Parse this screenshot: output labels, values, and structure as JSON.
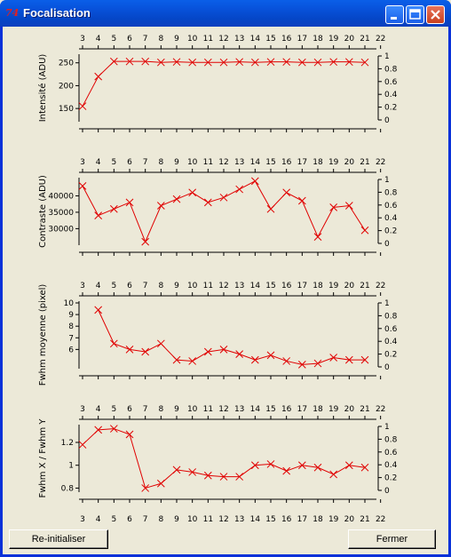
{
  "window": {
    "title": "Focalisation",
    "icon_glyph": "74",
    "controls": [
      "minimize-icon",
      "maximize-icon",
      "close-icon"
    ]
  },
  "buttons": {
    "reset_label": "Re-initialiser",
    "close_label": "Fermer"
  },
  "colors": {
    "titlebar": "#0a5fe8",
    "background": "#ece9d8",
    "series": "#e00000",
    "plot_bg": "#ece9d8"
  },
  "chart_data": [
    {
      "type": "line",
      "ylabel": "Intensité (ADU)",
      "x_ticks": [
        3,
        4,
        5,
        6,
        7,
        8,
        9,
        10,
        11,
        12,
        13,
        14,
        15,
        16,
        17,
        18,
        19,
        20,
        21,
        22
      ],
      "x": [
        3,
        4,
        5,
        6,
        7,
        8,
        9,
        10,
        11,
        12,
        13,
        14,
        15,
        16,
        17,
        18,
        19,
        20,
        21
      ],
      "values": [
        155,
        220,
        253,
        253,
        253,
        251,
        252,
        251,
        251,
        251,
        252,
        251,
        252,
        252,
        251,
        251,
        252,
        252,
        251
      ],
      "ylim": [
        125,
        265
      ],
      "y_ticks": [
        150,
        200,
        250
      ],
      "right_ticks": [
        "0",
        "0.2",
        "0.4",
        "0.6",
        "0.8",
        "1"
      ],
      "marker": "x"
    },
    {
      "type": "line",
      "ylabel": "Contraste (ADU)",
      "x_ticks": [
        3,
        4,
        5,
        6,
        7,
        8,
        9,
        10,
        11,
        12,
        13,
        14,
        15,
        16,
        17,
        18,
        19,
        20,
        21,
        22
      ],
      "x": [
        3,
        4,
        5,
        6,
        7,
        8,
        9,
        10,
        11,
        12,
        13,
        14,
        15,
        16,
        17,
        18,
        19,
        20,
        21
      ],
      "values": [
        43000,
        34000,
        36000,
        38000,
        26000,
        37000,
        39000,
        41000,
        38000,
        39500,
        42000,
        44500,
        36000,
        41000,
        38500,
        27500,
        36500,
        37000,
        29500
      ],
      "ylim": [
        25500,
        45000
      ],
      "y_ticks": [
        30000,
        35000,
        40000
      ],
      "right_ticks": [
        "0",
        "0.2",
        "0.4",
        "0.6",
        "0.8",
        "1"
      ],
      "marker": "x"
    },
    {
      "type": "line",
      "ylabel": "Fwhm moyenne (pixel)",
      "x_ticks": [
        3,
        4,
        5,
        6,
        7,
        8,
        9,
        10,
        11,
        12,
        13,
        14,
        15,
        16,
        17,
        18,
        19,
        20,
        21,
        22
      ],
      "x": [
        4,
        5,
        6,
        7,
        8,
        9,
        10,
        11,
        12,
        13,
        14,
        15,
        16,
        17,
        18,
        19,
        20,
        21
      ],
      "values": [
        9.4,
        6.5,
        6.0,
        5.8,
        6.5,
        5.1,
        5.0,
        5.8,
        6.0,
        5.6,
        5.1,
        5.5,
        5.0,
        4.7,
        4.8,
        5.3,
        5.1,
        5.1
      ],
      "ylim": [
        4.5,
        10
      ],
      "y_ticks": [
        6,
        7,
        8,
        9,
        10
      ],
      "right_ticks": [
        "0",
        "0.2",
        "0.4",
        "0.6",
        "0.8",
        "1"
      ],
      "marker": "x"
    },
    {
      "type": "line",
      "ylabel": "Fwhm X / Fwhm Y",
      "x_ticks": [
        3,
        4,
        5,
        6,
        7,
        8,
        9,
        10,
        11,
        12,
        13,
        14,
        15,
        16,
        17,
        18,
        19,
        20,
        21,
        22
      ],
      "x": [
        3,
        4,
        5,
        6,
        7,
        8,
        9,
        10,
        11,
        12,
        13,
        14,
        15,
        16,
        17,
        18,
        19,
        20,
        21
      ],
      "values": [
        1.18,
        1.31,
        1.32,
        1.27,
        0.8,
        0.84,
        0.96,
        0.94,
        0.91,
        0.9,
        0.9,
        1.0,
        1.01,
        0.95,
        1.0,
        0.98,
        0.92,
        1.0,
        0.98
      ],
      "ylim": [
        0.78,
        1.34
      ],
      "y_ticks": [
        0.8,
        1,
        1.2
      ],
      "right_ticks": [
        "0",
        "0.2",
        "0.4",
        "0.6",
        "0.8",
        "1"
      ],
      "marker": "x"
    }
  ]
}
